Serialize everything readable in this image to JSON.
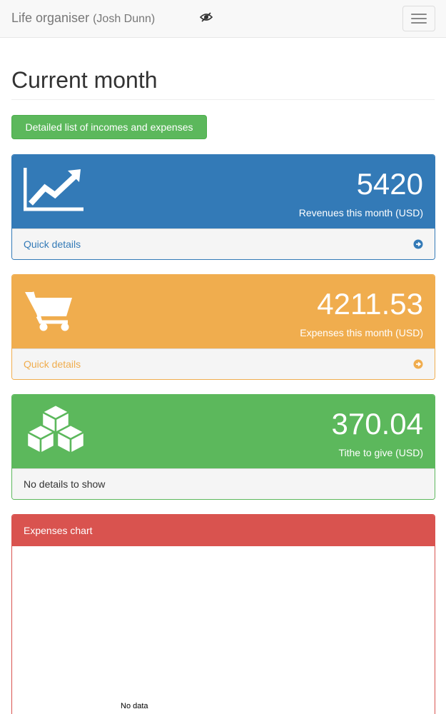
{
  "navbar": {
    "brand": "Life organiser",
    "user": "(Josh Dunn)",
    "privacy_icon": "eye-slash-icon",
    "menu_icon": "hamburger-icon"
  },
  "page": {
    "title": "Current month",
    "details_button": "Detailed list of incomes and expenses"
  },
  "panels": {
    "revenues": {
      "value": "5420",
      "label": "Revenues this month (USD)",
      "footer": "Quick details",
      "icon": "line-chart-icon",
      "color": "#337ab7"
    },
    "expenses": {
      "value": "4211.53",
      "label": "Expenses this month (USD)",
      "footer": "Quick details",
      "icon": "shopping-cart-icon",
      "color": "#f0ad4e"
    },
    "tithe": {
      "value": "370.04",
      "label": "Tithe to give (USD)",
      "footer": "No details to show",
      "icon": "cubes-icon",
      "color": "#5cb85c"
    }
  },
  "chart": {
    "title": "Expenses chart",
    "empty_text": "No data",
    "color": "#d9534f"
  }
}
